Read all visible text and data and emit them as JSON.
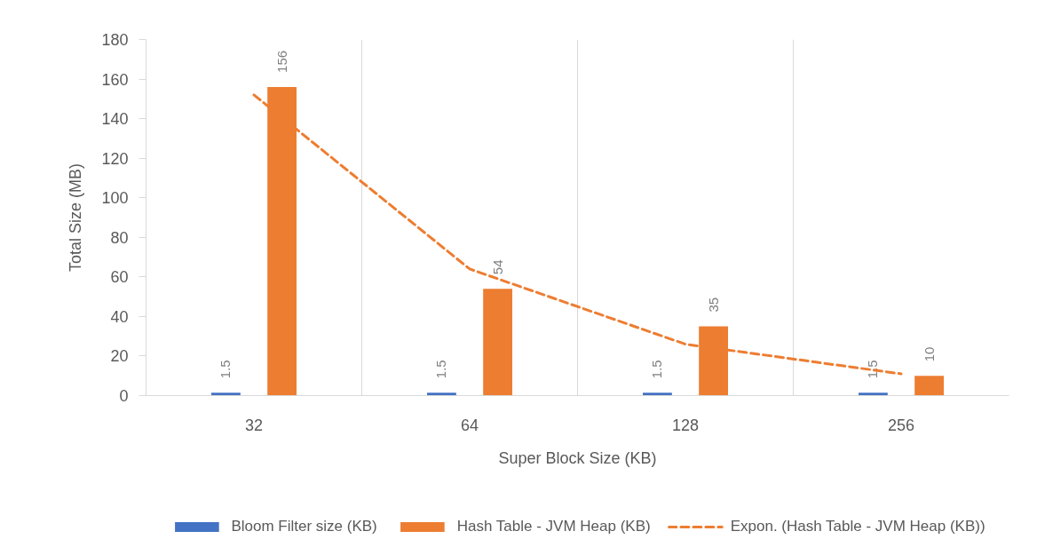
{
  "chart_data": {
    "type": "bar",
    "xlabel": "Super Block Size (KB)",
    "ylabel": "Total Size (MB)",
    "categories": [
      "32",
      "64",
      "128",
      "256"
    ],
    "series": [
      {
        "name": "Bloom Filter size (KB)",
        "color": "#4472c4",
        "values": [
          1.5,
          1.5,
          1.5,
          1.5
        ],
        "value_labels": [
          "1.5",
          "1.5",
          "1.5",
          "1.5"
        ]
      },
      {
        "name": "Hash Table - JVM Heap (KB)",
        "color": "#ed7d31",
        "values": [
          156,
          54,
          35,
          10
        ],
        "value_labels": [
          "156",
          "54",
          "35",
          "10"
        ]
      },
      {
        "name": "Expon. (Hash Table - JVM Heap (KB))",
        "type": "line",
        "color": "#ed7d31",
        "line_style": "dashed",
        "values": [
          152,
          64,
          26,
          11
        ]
      }
    ],
    "ylim": [
      0,
      180
    ],
    "yticks": [
      0,
      20,
      40,
      60,
      80,
      100,
      120,
      140,
      160,
      180
    ],
    "grid": "x",
    "legend": "bottom"
  }
}
